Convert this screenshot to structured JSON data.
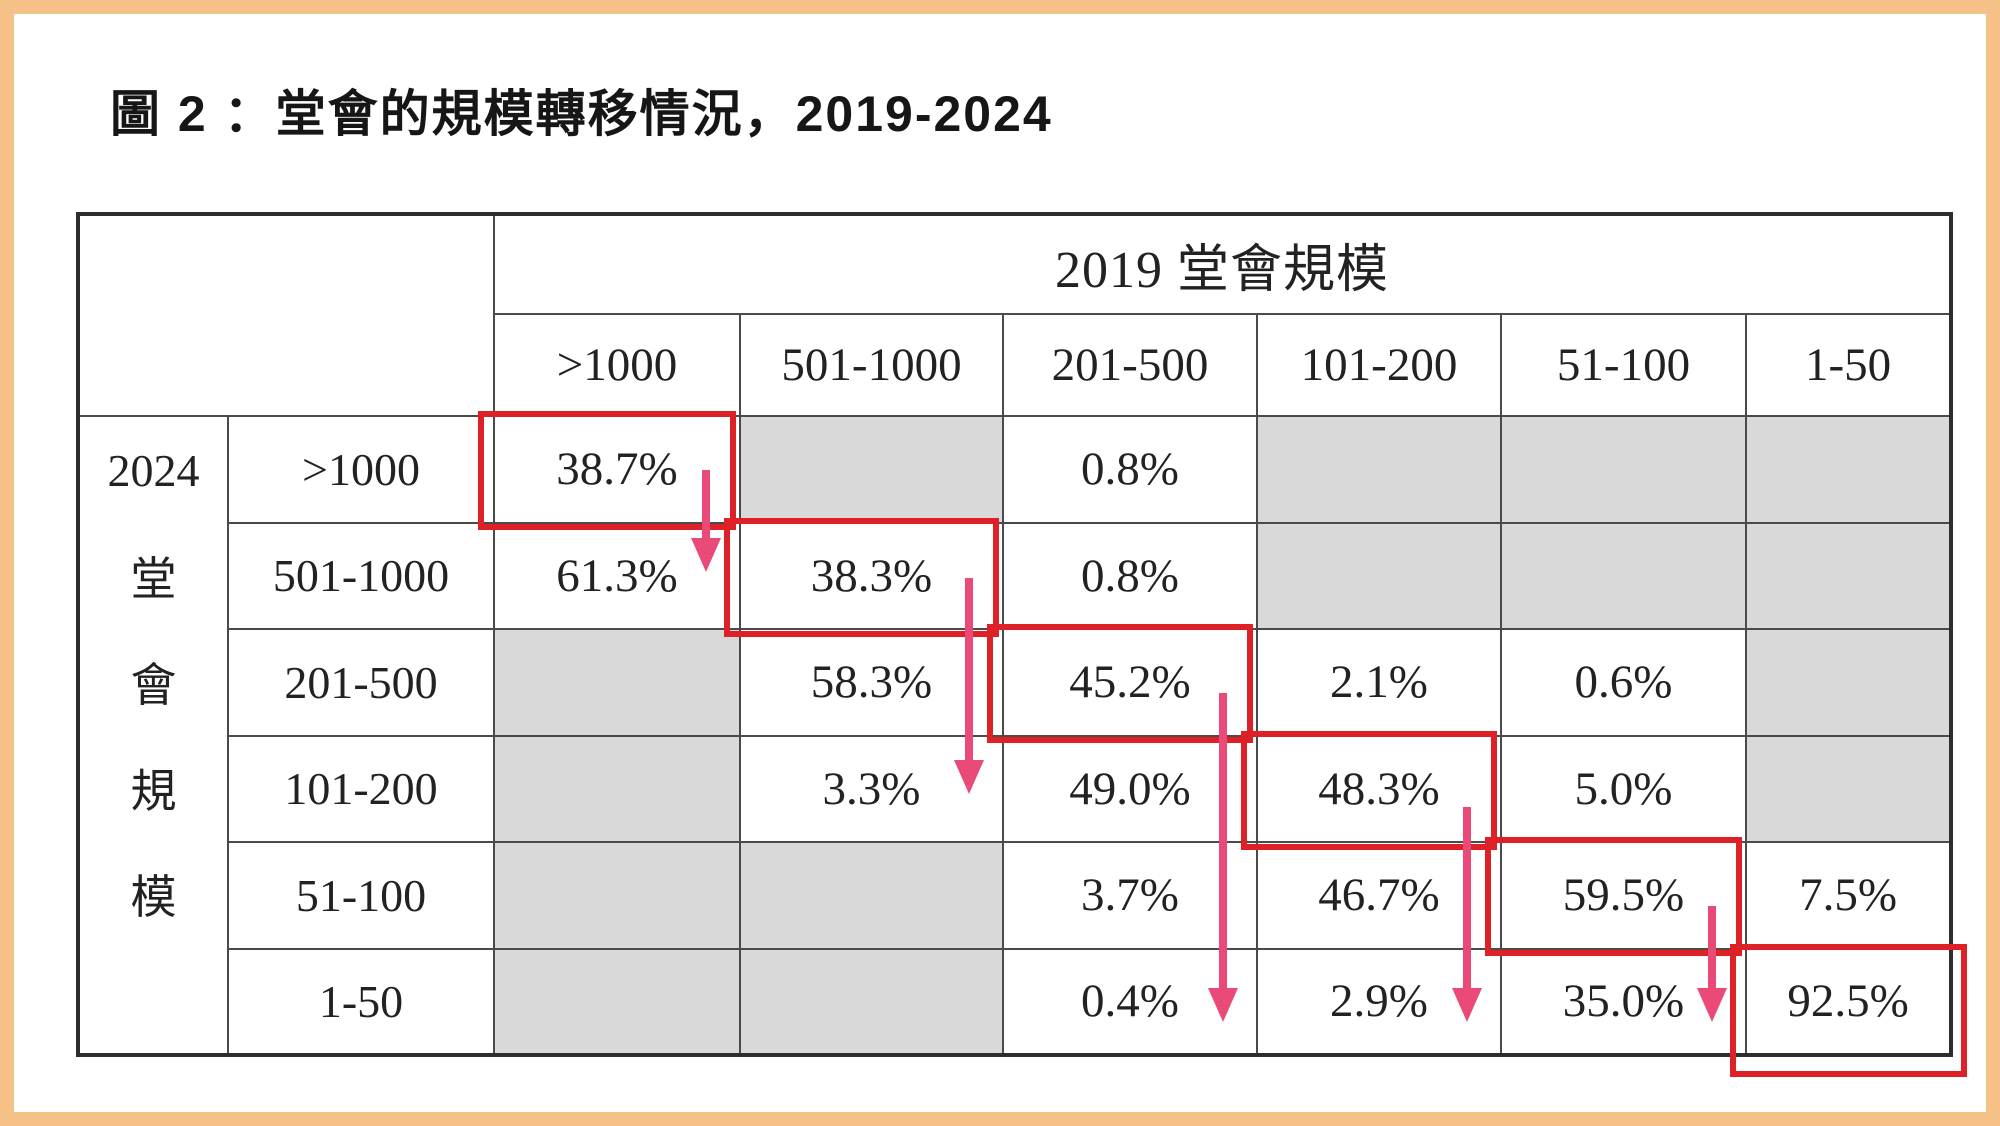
{
  "page": {
    "frame_color": "#f5c186",
    "background_color": "#ffffff"
  },
  "figure": {
    "title": "圖 2 ：堂會的規模轉移情況，2019-2024"
  },
  "chart_data": {
    "type": "table",
    "title": "圖 2 ：堂會的規模轉移情況，2019-2024",
    "col_group_label": "2019 堂會規模",
    "row_group_label": "2024堂會規模",
    "row_group_chars": [
      "2024",
      "堂",
      "會",
      "規",
      "模",
      ""
    ],
    "col_headers": [
      ">1000",
      "501-1000",
      "201-500",
      "101-200",
      "51-100",
      "1-50"
    ],
    "rows": [
      {
        "label": ">1000",
        "cells": [
          {
            "value": "38.7%",
            "highlight": true
          },
          {
            "empty": true
          },
          {
            "value": "0.8%"
          },
          {
            "empty": true
          },
          {
            "empty": true
          },
          {
            "empty": true
          }
        ]
      },
      {
        "label": "501-1000",
        "cells": [
          {
            "value": "61.3%"
          },
          {
            "value": "38.3%",
            "highlight": true
          },
          {
            "value": "0.8%"
          },
          {
            "empty": true
          },
          {
            "empty": true
          },
          {
            "empty": true
          }
        ]
      },
      {
        "label": "201-500",
        "cells": [
          {
            "empty": true
          },
          {
            "value": "58.3%"
          },
          {
            "value": "45.2%",
            "highlight": true
          },
          {
            "value": "2.1%"
          },
          {
            "value": "0.6%"
          },
          {
            "empty": true
          }
        ]
      },
      {
        "label": "101-200",
        "cells": [
          {
            "empty": true
          },
          {
            "value": "3.3%"
          },
          {
            "value": "49.0%"
          },
          {
            "value": "48.3%",
            "highlight": true
          },
          {
            "value": "5.0%"
          },
          {
            "empty": true
          }
        ]
      },
      {
        "label": "51-100",
        "cells": [
          {
            "empty": true
          },
          {
            "empty": true
          },
          {
            "value": "3.7%"
          },
          {
            "value": "46.7%"
          },
          {
            "value": "59.5%",
            "highlight": true
          },
          {
            "value": "7.5%"
          }
        ]
      },
      {
        "label": "1-50",
        "cells": [
          {
            "empty": true
          },
          {
            "empty": true
          },
          {
            "value": "0.4%"
          },
          {
            "value": "2.9%"
          },
          {
            "value": "35.0%"
          },
          {
            "value": "92.5%",
            "highlight": true,
            "extend_box": true
          }
        ]
      }
    ],
    "empty_cell_color": "#d9d9d9",
    "annotations": {
      "highlight_box_color": "#dd2127",
      "arrow_color": "#e94a78",
      "arrows": [
        {
          "col": 0,
          "from_row": 0,
          "to_row": 1,
          "start_frac": 0.52,
          "tip_frac": 0.48
        },
        {
          "col": 1,
          "from_row": 1,
          "to_row": 3,
          "start_frac": 0.53,
          "tip_frac": 0.56
        },
        {
          "col": 2,
          "from_row": 2,
          "to_row": 5,
          "start_frac": 0.62,
          "tip_frac": 0.7
        },
        {
          "col": 3,
          "from_row": 3,
          "to_row": 5,
          "start_frac": 0.68,
          "tip_frac": 0.7
        },
        {
          "col": 4,
          "from_row": 4,
          "to_row": 5,
          "start_frac": 0.62,
          "tip_frac": 0.7
        }
      ]
    }
  }
}
